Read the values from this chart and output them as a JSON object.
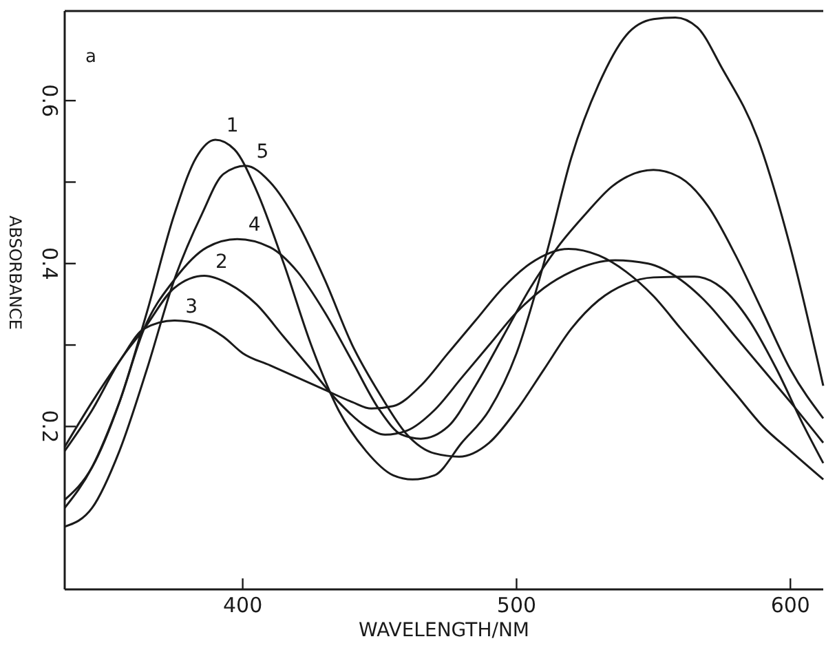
{
  "chart_data": {
    "type": "line",
    "xlabel": "WAVELENGTH/NM",
    "ylabel": "ABSORBANCE",
    "annotations": [
      "a"
    ],
    "xlim": [
      335,
      612
    ],
    "ylim": [
      0,
      0.71
    ],
    "xticks": [
      400,
      500,
      600
    ],
    "yticks": [
      0.2,
      {
        "value": 0.3,
        "label": null
      },
      0.4,
      {
        "value": 0.5,
        "label": null
      },
      0.6
    ],
    "grid": false,
    "legend": false,
    "marker": "none",
    "line_style": "solid",
    "series": [
      {
        "name": "1",
        "color": "#1a1a1a",
        "x": [
          335,
          345,
          355,
          365,
          375,
          383,
          390,
          397,
          405,
          415,
          425,
          435,
          445,
          455,
          462,
          470,
          480,
          490,
          500,
          511,
          520,
          530,
          540,
          550,
          558,
          566,
          575,
          588,
          600,
          612
        ],
        "values": [
          0.11,
          0.15,
          0.23,
          0.34,
          0.46,
          0.53,
          0.552,
          0.54,
          0.49,
          0.4,
          0.3,
          0.22,
          0.17,
          0.14,
          0.135,
          0.14,
          0.18,
          0.22,
          0.29,
          0.413,
          0.53,
          0.62,
          0.68,
          0.7,
          0.702,
          0.69,
          0.64,
          0.554,
          0.42,
          0.25
        ]
      },
      {
        "name": "2",
        "color": "#1a1a1a",
        "x": [
          335,
          345,
          355,
          364,
          375,
          386,
          395,
          405,
          415,
          425,
          435,
          445,
          452,
          460,
          470,
          480,
          490,
          500,
          510,
          520,
          536,
          548,
          560,
          570,
          580,
          590,
          600,
          612
        ],
        "values": [
          0.17,
          0.22,
          0.28,
          0.32,
          0.37,
          0.385,
          0.375,
          0.35,
          0.31,
          0.27,
          0.23,
          0.2,
          0.19,
          0.195,
          0.22,
          0.26,
          0.3,
          0.34,
          0.37,
          0.39,
          0.404,
          0.4,
          0.38,
          0.35,
          0.31,
          0.27,
          0.23,
          0.18
        ]
      },
      {
        "name": "3",
        "color": "#1a1a1a",
        "x": [
          335,
          345,
          355,
          364,
          375,
          385,
          393,
          400,
          410,
          420,
          430,
          440,
          447,
          455,
          465,
          475,
          485,
          495,
          505,
          519,
          530,
          540,
          550,
          560,
          570,
          580,
          590,
          600,
          612
        ],
        "values": [
          0.175,
          0.23,
          0.28,
          0.32,
          0.33,
          0.325,
          0.31,
          0.29,
          0.275,
          0.26,
          0.245,
          0.23,
          0.222,
          0.225,
          0.25,
          0.29,
          0.33,
          0.37,
          0.4,
          0.418,
          0.41,
          0.39,
          0.36,
          0.32,
          0.28,
          0.24,
          0.2,
          0.17,
          0.135
        ]
      },
      {
        "name": "4",
        "color": "#1a1a1a",
        "x": [
          335,
          345,
          355,
          364,
          375,
          387,
          398,
          410,
          420,
          430,
          440,
          450,
          458,
          465,
          475,
          485,
          495,
          505,
          515,
          525,
          535,
          550,
          560,
          570,
          580,
          590,
          600,
          612
        ],
        "values": [
          0.1,
          0.15,
          0.23,
          0.32,
          0.38,
          0.42,
          0.43,
          0.42,
          0.39,
          0.34,
          0.28,
          0.22,
          0.19,
          0.185,
          0.2,
          0.25,
          0.31,
          0.37,
          0.42,
          0.46,
          0.495,
          0.515,
          0.505,
          0.47,
          0.41,
          0.34,
          0.27,
          0.21
        ]
      },
      {
        "name": "5",
        "color": "#1a1a1a",
        "x": [
          335,
          345,
          355,
          365,
          375,
          385,
          393,
          401,
          410,
          420,
          430,
          440,
          450,
          460,
          470,
          479,
          490,
          500,
          510,
          520,
          530,
          540,
          550,
          565,
          575,
          585,
          595,
          605,
          612
        ],
        "values": [
          0.077,
          0.1,
          0.17,
          0.27,
          0.38,
          0.46,
          0.51,
          0.52,
          0.5,
          0.45,
          0.38,
          0.3,
          0.24,
          0.19,
          0.167,
          0.163,
          0.18,
          0.22,
          0.27,
          0.32,
          0.355,
          0.375,
          0.383,
          0.384,
          0.37,
          0.33,
          0.27,
          0.2,
          0.155
        ]
      }
    ]
  }
}
